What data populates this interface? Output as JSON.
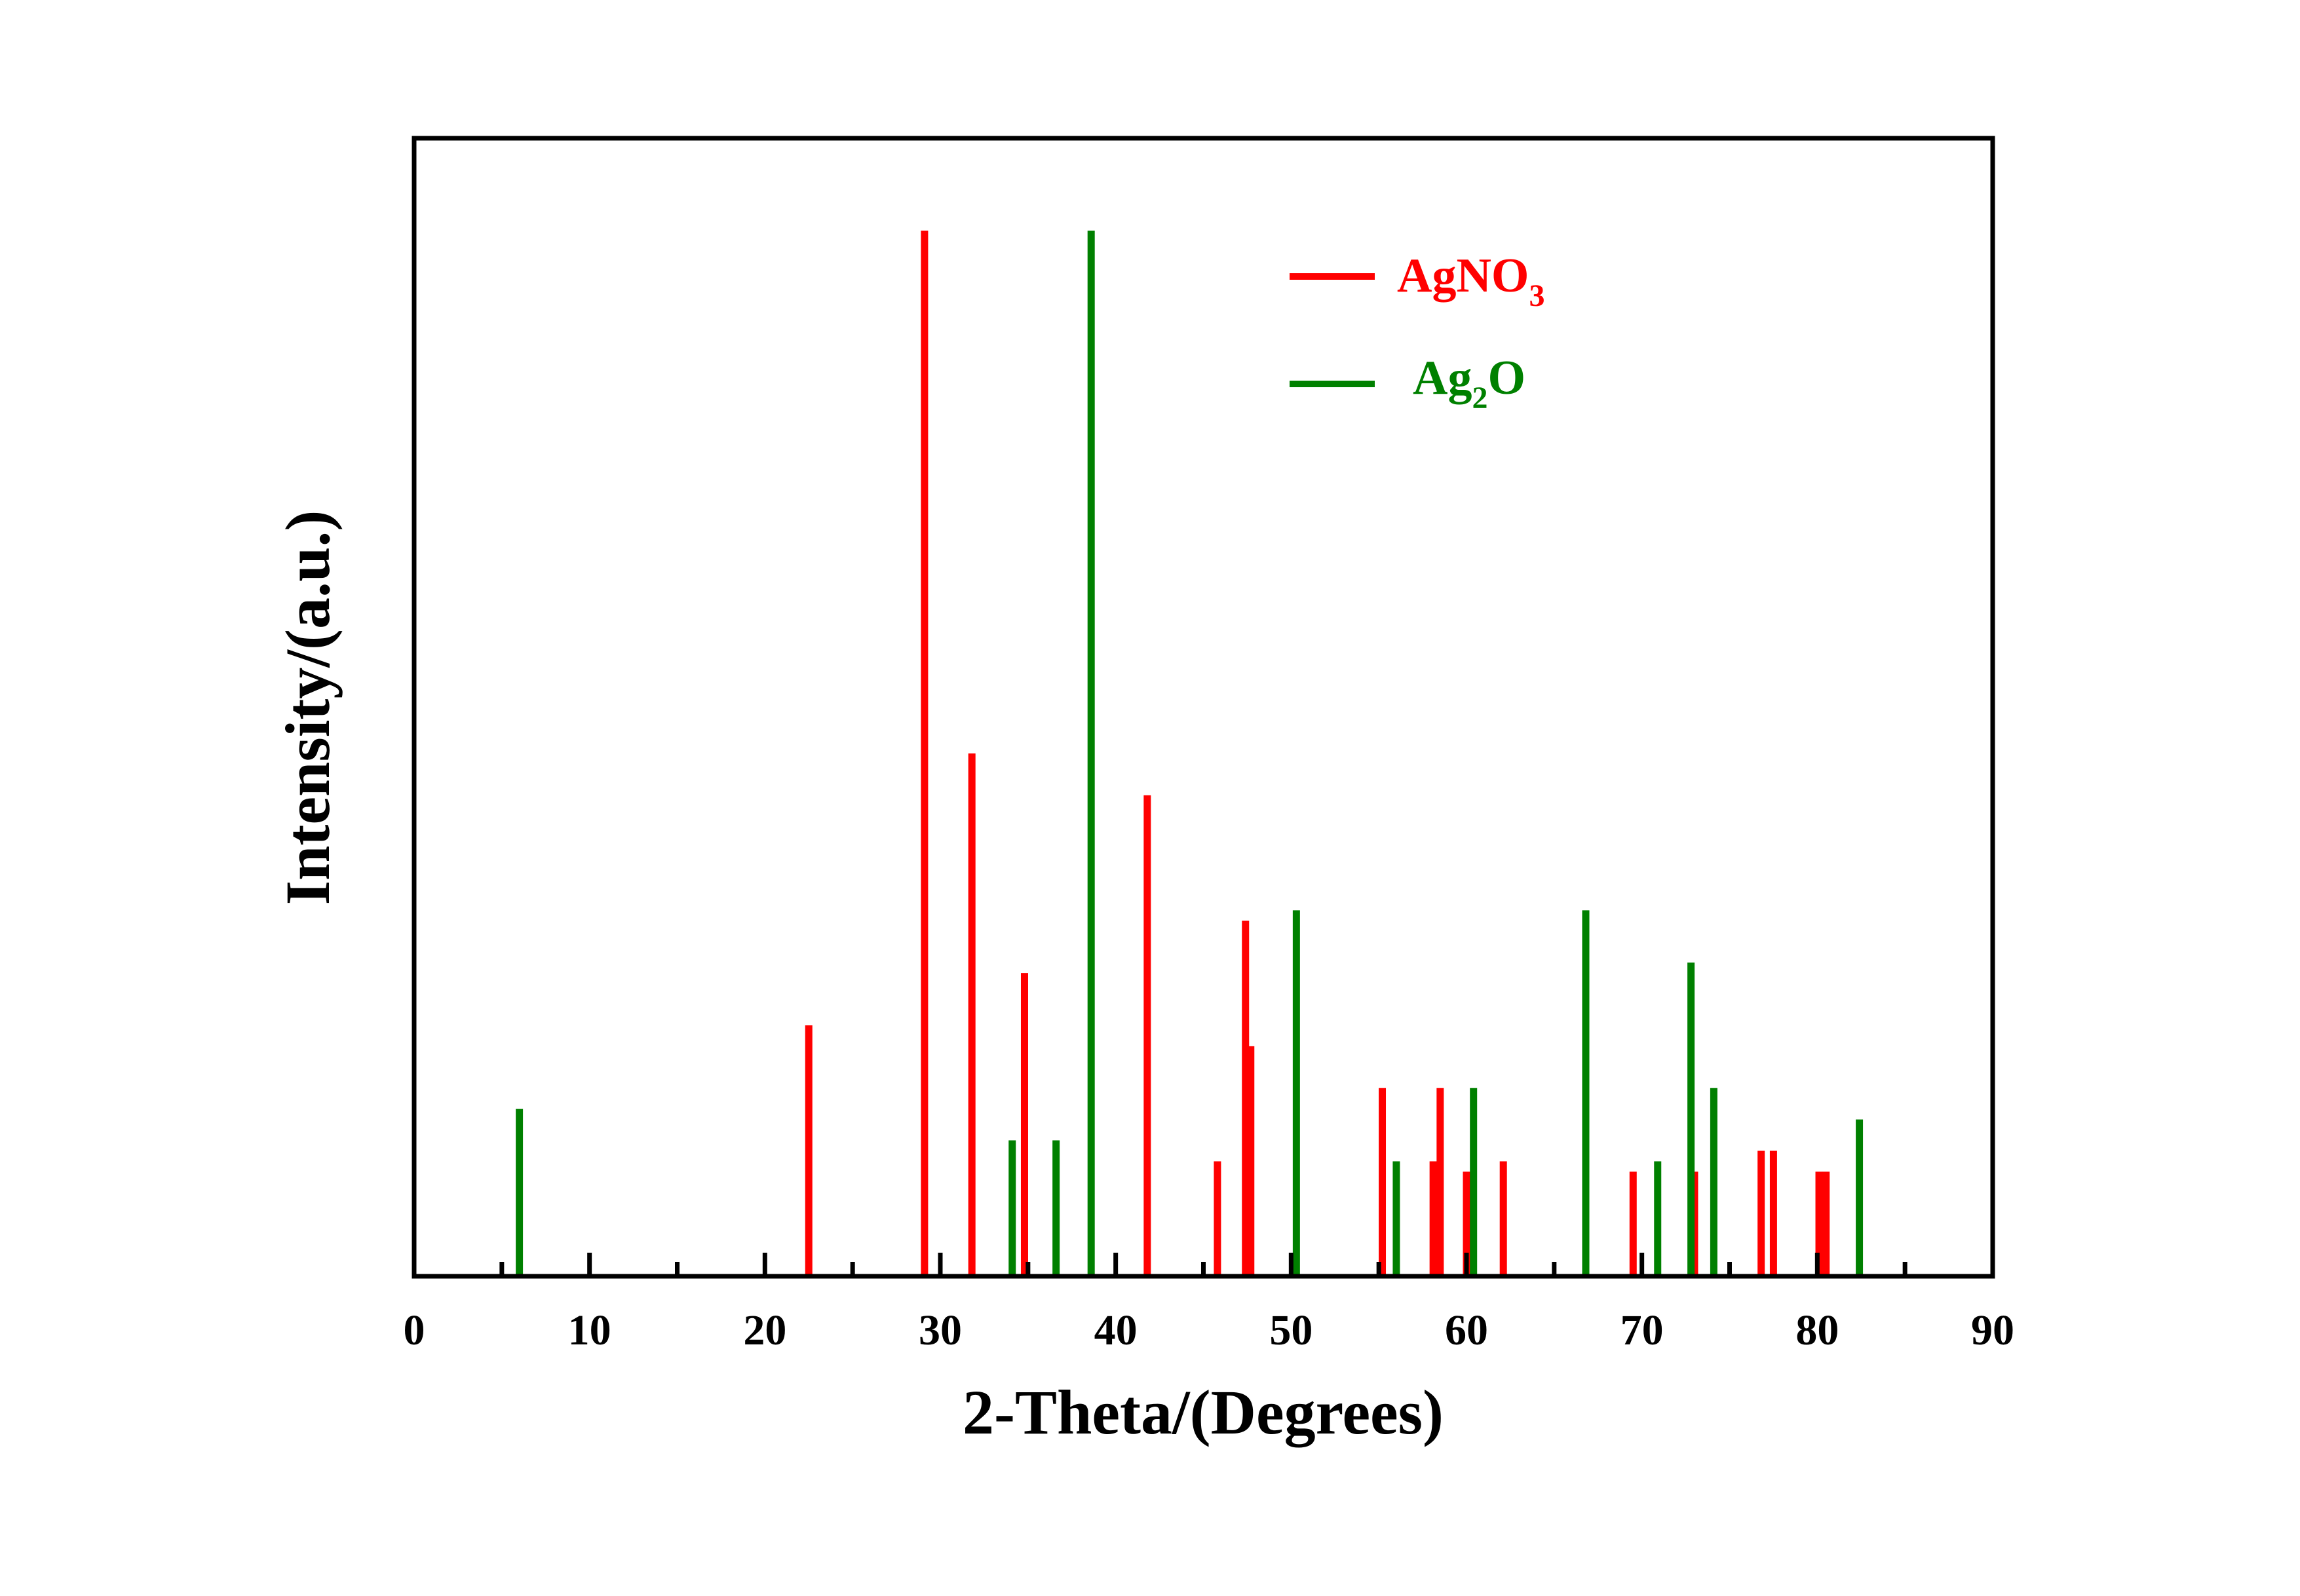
{
  "chart_data": {
    "type": "bar",
    "xlabel": "2-Theta/(Degrees)",
    "ylabel": "Intensity/(a.u.)",
    "xlim": [
      0,
      90
    ],
    "ylim": [
      0,
      100
    ],
    "xticks": [
      0,
      10,
      20,
      30,
      40,
      50,
      60,
      70,
      80,
      90
    ],
    "minor_ticks": [
      5,
      10,
      15,
      20,
      25,
      30,
      35,
      40,
      45,
      50,
      55,
      60,
      65,
      70,
      75,
      80,
      85
    ],
    "grid": false,
    "legend_position": "top-right",
    "series": [
      {
        "name": "AgNO3",
        "legend": {
          "base": "AgNO",
          "sub": "3"
        },
        "color": "#ff0000",
        "x": [
          22.5,
          29.1,
          31.8,
          34.8,
          41.8,
          45.8,
          47.4,
          47.7,
          55.2,
          58.1,
          58.5,
          60.0,
          62.1,
          69.5,
          73.0,
          76.8,
          77.5,
          80.1,
          80.5
        ],
        "values": [
          24,
          100,
          50,
          29,
          46,
          11,
          34,
          22,
          18,
          11,
          18,
          10,
          11,
          10,
          10,
          12,
          12,
          10,
          10
        ]
      },
      {
        "name": "Ag2O",
        "legend": {
          "base": "Ag",
          "sub": "2",
          "post": "O"
        },
        "color": "#008000",
        "x": [
          6.0,
          34.1,
          36.6,
          38.6,
          50.3,
          56.0,
          60.4,
          66.8,
          70.9,
          72.8,
          74.1,
          82.4
        ],
        "values": [
          16,
          13,
          13,
          100,
          35,
          11,
          18,
          35,
          11,
          30,
          18,
          15
        ]
      }
    ]
  }
}
